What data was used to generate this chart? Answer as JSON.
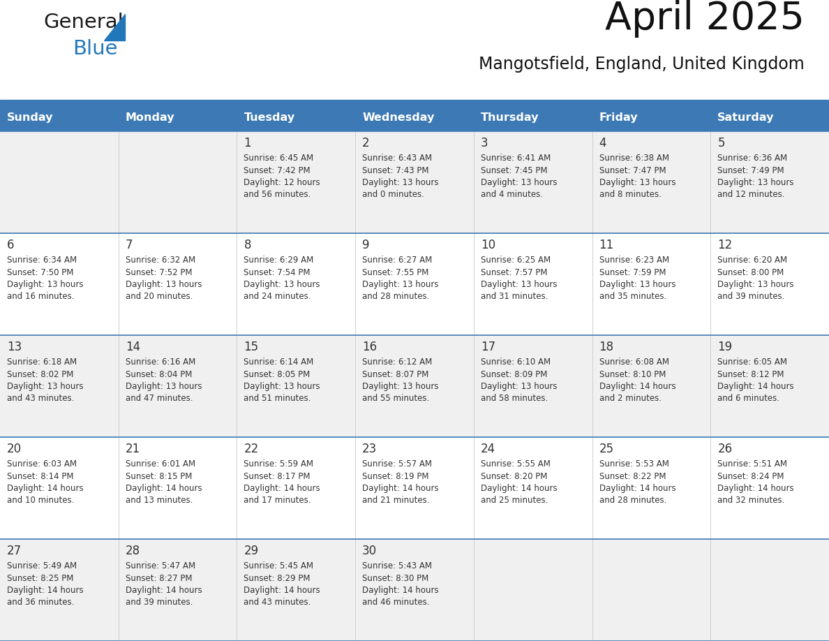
{
  "title": "April 2025",
  "subtitle": "Mangotsfield, England, United Kingdom",
  "days_of_week": [
    "Sunday",
    "Monday",
    "Tuesday",
    "Wednesday",
    "Thursday",
    "Friday",
    "Saturday"
  ],
  "header_bg": "#3d7ab5",
  "header_text": "#ffffff",
  "row_bg_odd": "#f0f0f0",
  "row_bg_even": "#ffffff",
  "separator_color": "#3d7ab5",
  "day_num_color": "#333333",
  "text_color": "#333333",
  "calendar": [
    [
      {
        "day": null,
        "info": ""
      },
      {
        "day": null,
        "info": ""
      },
      {
        "day": 1,
        "info": "Sunrise: 6:45 AM\nSunset: 7:42 PM\nDaylight: 12 hours\nand 56 minutes."
      },
      {
        "day": 2,
        "info": "Sunrise: 6:43 AM\nSunset: 7:43 PM\nDaylight: 13 hours\nand 0 minutes."
      },
      {
        "day": 3,
        "info": "Sunrise: 6:41 AM\nSunset: 7:45 PM\nDaylight: 13 hours\nand 4 minutes."
      },
      {
        "day": 4,
        "info": "Sunrise: 6:38 AM\nSunset: 7:47 PM\nDaylight: 13 hours\nand 8 minutes."
      },
      {
        "day": 5,
        "info": "Sunrise: 6:36 AM\nSunset: 7:49 PM\nDaylight: 13 hours\nand 12 minutes."
      }
    ],
    [
      {
        "day": 6,
        "info": "Sunrise: 6:34 AM\nSunset: 7:50 PM\nDaylight: 13 hours\nand 16 minutes."
      },
      {
        "day": 7,
        "info": "Sunrise: 6:32 AM\nSunset: 7:52 PM\nDaylight: 13 hours\nand 20 minutes."
      },
      {
        "day": 8,
        "info": "Sunrise: 6:29 AM\nSunset: 7:54 PM\nDaylight: 13 hours\nand 24 minutes."
      },
      {
        "day": 9,
        "info": "Sunrise: 6:27 AM\nSunset: 7:55 PM\nDaylight: 13 hours\nand 28 minutes."
      },
      {
        "day": 10,
        "info": "Sunrise: 6:25 AM\nSunset: 7:57 PM\nDaylight: 13 hours\nand 31 minutes."
      },
      {
        "day": 11,
        "info": "Sunrise: 6:23 AM\nSunset: 7:59 PM\nDaylight: 13 hours\nand 35 minutes."
      },
      {
        "day": 12,
        "info": "Sunrise: 6:20 AM\nSunset: 8:00 PM\nDaylight: 13 hours\nand 39 minutes."
      }
    ],
    [
      {
        "day": 13,
        "info": "Sunrise: 6:18 AM\nSunset: 8:02 PM\nDaylight: 13 hours\nand 43 minutes."
      },
      {
        "day": 14,
        "info": "Sunrise: 6:16 AM\nSunset: 8:04 PM\nDaylight: 13 hours\nand 47 minutes."
      },
      {
        "day": 15,
        "info": "Sunrise: 6:14 AM\nSunset: 8:05 PM\nDaylight: 13 hours\nand 51 minutes."
      },
      {
        "day": 16,
        "info": "Sunrise: 6:12 AM\nSunset: 8:07 PM\nDaylight: 13 hours\nand 55 minutes."
      },
      {
        "day": 17,
        "info": "Sunrise: 6:10 AM\nSunset: 8:09 PM\nDaylight: 13 hours\nand 58 minutes."
      },
      {
        "day": 18,
        "info": "Sunrise: 6:08 AM\nSunset: 8:10 PM\nDaylight: 14 hours\nand 2 minutes."
      },
      {
        "day": 19,
        "info": "Sunrise: 6:05 AM\nSunset: 8:12 PM\nDaylight: 14 hours\nand 6 minutes."
      }
    ],
    [
      {
        "day": 20,
        "info": "Sunrise: 6:03 AM\nSunset: 8:14 PM\nDaylight: 14 hours\nand 10 minutes."
      },
      {
        "day": 21,
        "info": "Sunrise: 6:01 AM\nSunset: 8:15 PM\nDaylight: 14 hours\nand 13 minutes."
      },
      {
        "day": 22,
        "info": "Sunrise: 5:59 AM\nSunset: 8:17 PM\nDaylight: 14 hours\nand 17 minutes."
      },
      {
        "day": 23,
        "info": "Sunrise: 5:57 AM\nSunset: 8:19 PM\nDaylight: 14 hours\nand 21 minutes."
      },
      {
        "day": 24,
        "info": "Sunrise: 5:55 AM\nSunset: 8:20 PM\nDaylight: 14 hours\nand 25 minutes."
      },
      {
        "day": 25,
        "info": "Sunrise: 5:53 AM\nSunset: 8:22 PM\nDaylight: 14 hours\nand 28 minutes."
      },
      {
        "day": 26,
        "info": "Sunrise: 5:51 AM\nSunset: 8:24 PM\nDaylight: 14 hours\nand 32 minutes."
      }
    ],
    [
      {
        "day": 27,
        "info": "Sunrise: 5:49 AM\nSunset: 8:25 PM\nDaylight: 14 hours\nand 36 minutes."
      },
      {
        "day": 28,
        "info": "Sunrise: 5:47 AM\nSunset: 8:27 PM\nDaylight: 14 hours\nand 39 minutes."
      },
      {
        "day": 29,
        "info": "Sunrise: 5:45 AM\nSunset: 8:29 PM\nDaylight: 14 hours\nand 43 minutes."
      },
      {
        "day": 30,
        "info": "Sunrise: 5:43 AM\nSunset: 8:30 PM\nDaylight: 14 hours\nand 46 minutes."
      },
      {
        "day": null,
        "info": ""
      },
      {
        "day": null,
        "info": ""
      },
      {
        "day": null,
        "info": ""
      }
    ]
  ],
  "logo_color_general": "#1a1a1a",
  "logo_color_blue": "#2277bb",
  "logo_triangle_color": "#2277bb"
}
